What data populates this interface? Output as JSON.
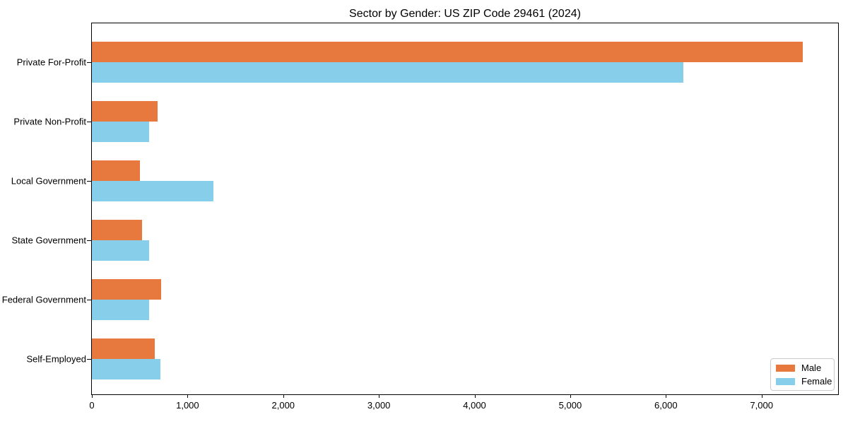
{
  "chart_data": {
    "type": "bar",
    "orientation": "horizontal",
    "title": "Sector by Gender: US ZIP Code 29461 (2024)",
    "categories": [
      "Private For-Profit",
      "Private Non-Profit",
      "Local Government",
      "State Government",
      "Federal Government",
      "Self-Employed"
    ],
    "series": [
      {
        "name": "Male",
        "color": "#e8793e",
        "values": [
          7430,
          690,
          505,
          525,
          720,
          660
        ]
      },
      {
        "name": "Female",
        "color": "#87ceeb",
        "values": [
          6180,
          595,
          1270,
          600,
          600,
          715
        ]
      }
    ],
    "xlabel": "",
    "ylabel": "",
    "xlim": [
      0,
      7800
    ],
    "x_ticks": [
      0,
      1000,
      2000,
      3000,
      4000,
      5000,
      6000,
      7000
    ],
    "x_tick_labels": [
      "0",
      "1,000",
      "2,000",
      "3,000",
      "4,000",
      "5,000",
      "6,000",
      "7,000"
    ],
    "grid": false,
    "legend_position": "lower right",
    "spine_color": "#000000",
    "background_color": "#ffffff"
  }
}
